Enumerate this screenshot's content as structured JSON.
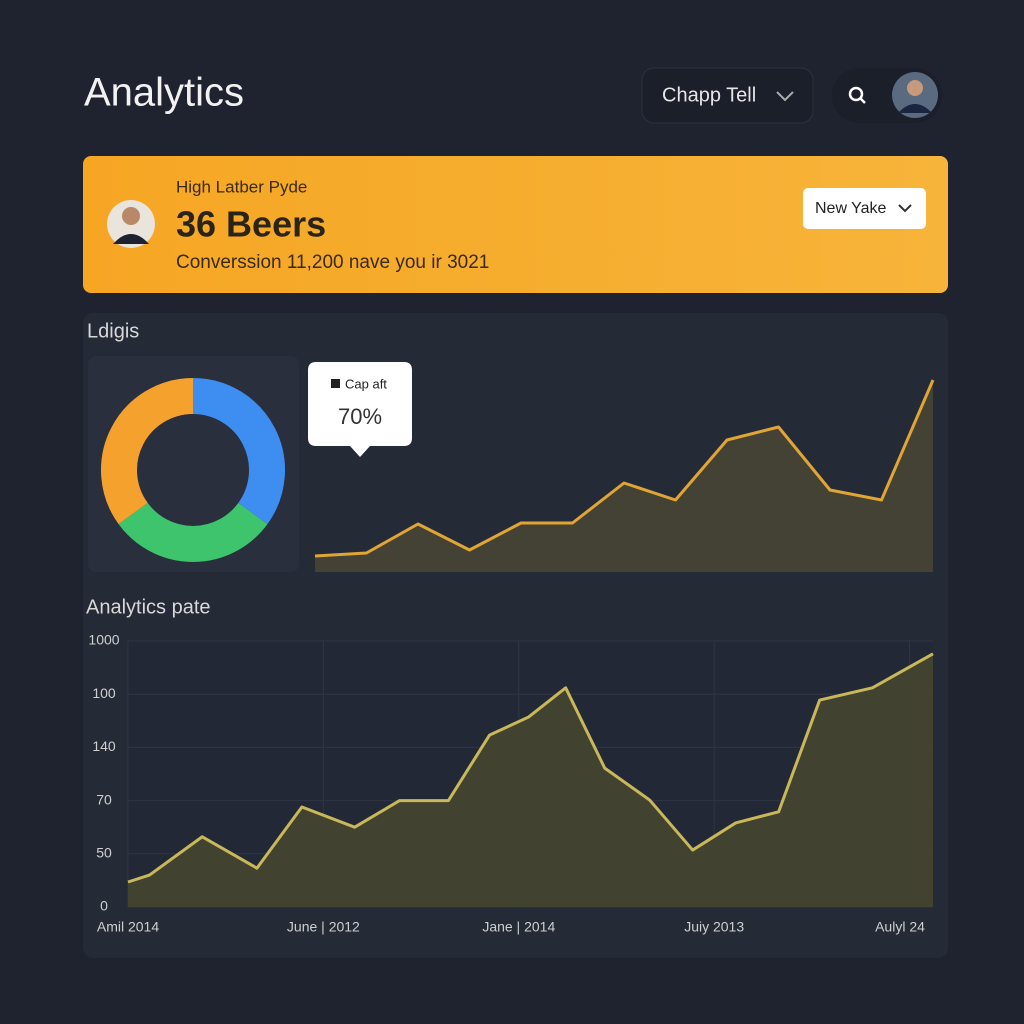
{
  "header": {
    "title": "Analytics",
    "dropdown": "Chapp Tell"
  },
  "banner": {
    "label": "High Latber Pyde",
    "headline": "36 Beers",
    "subtext": "Converssion 11,200 nave you ir 3021",
    "dropdown": "New Yake"
  },
  "panel": {
    "title": "Ldigis"
  },
  "chart_data": [
    {
      "type": "donut",
      "values": [
        35,
        30,
        35
      ],
      "colors": [
        "#3d8ef0",
        "#3ec46d",
        "#f4a22d"
      ]
    },
    {
      "type": "area",
      "values": [
        16,
        19,
        48,
        22,
        49,
        49,
        89,
        72,
        132,
        145,
        82,
        72,
        192
      ],
      "color": "#e0a534",
      "tooltip": {
        "label": "Cap aft",
        "value": "70%"
      }
    },
    {
      "type": "area",
      "title": "Analytics pate",
      "color": "#c9b85a",
      "grid": true,
      "x": [
        0,
        0.11,
        0.38,
        0.66,
        0.89,
        1.16,
        1.39,
        1.64,
        1.85,
        2.05,
        2.24,
        2.44,
        2.67,
        2.89,
        3.11,
        3.33,
        3.54,
        3.81,
        4.12
      ],
      "values": [
        0.47,
        0.6,
        1.32,
        0.73,
        1.88,
        1.5,
        2.0,
        2.0,
        3.23,
        3.57,
        4.12,
        2.61,
        2.01,
        1.07,
        1.58,
        1.79,
        3.89,
        4.12,
        4.76
      ],
      "xlim": [
        0,
        4.12
      ],
      "xticks": [
        {
          "value": 0,
          "label": "Amil 2014"
        },
        {
          "value": 1,
          "label": "June | 2012"
        },
        {
          "value": 2,
          "label": "Jane | 2014"
        },
        {
          "value": 3,
          "label": "Juiy 2013"
        },
        {
          "value": 4,
          "label": "Aulyl 24"
        }
      ],
      "ylim": [
        0,
        5
      ],
      "yticks": [
        0,
        {
          "value": 1,
          "label": "50"
        },
        {
          "value": 2,
          "label": "70"
        },
        {
          "value": 3,
          "label": "140"
        },
        {
          "value": 4,
          "label": "100"
        },
        {
          "value": 5,
          "label": "1000"
        }
      ]
    }
  ]
}
